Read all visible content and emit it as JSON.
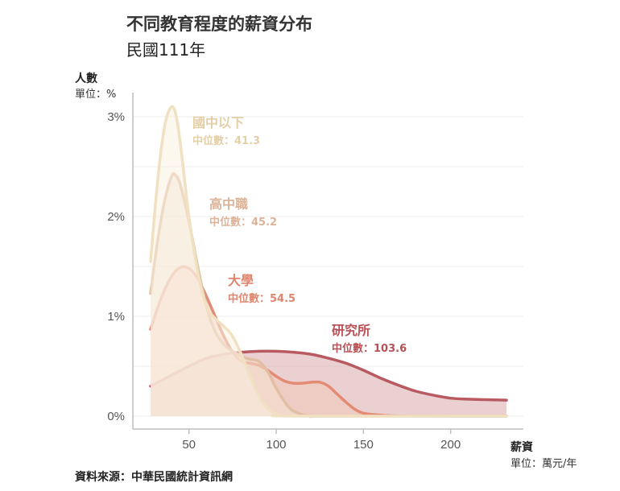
{
  "header": {
    "title": "不同教育程度的薪資分布",
    "subtitle": "民國111年"
  },
  "axes": {
    "y_title": "人數",
    "y_unit": "單位：%",
    "x_title": "薪資",
    "x_unit": "單位：萬元/年"
  },
  "footer": {
    "source": "資料來源：中華民國統計資訊網"
  },
  "chart_data": {
    "type": "area",
    "x_range": [
      28,
      232
    ],
    "ylim": [
      0,
      3.3
    ],
    "x_ticks": [
      50,
      100,
      150,
      200
    ],
    "y_ticks": [
      0,
      1,
      2,
      3
    ],
    "y_tick_labels": [
      "0%",
      "1%",
      "2%",
      "3%"
    ],
    "grid": true,
    "series": [
      {
        "name": "研究所",
        "median_label": "中位數：103.6",
        "color": "#b85a5f",
        "fill": "#dba9ac",
        "points": [
          [
            28,
            0.3
          ],
          [
            40,
            0.41
          ],
          [
            50,
            0.5
          ],
          [
            60,
            0.58
          ],
          [
            70,
            0.62
          ],
          [
            80,
            0.64
          ],
          [
            90,
            0.65
          ],
          [
            100,
            0.65
          ],
          [
            110,
            0.64
          ],
          [
            120,
            0.62
          ],
          [
            130,
            0.58
          ],
          [
            140,
            0.53
          ],
          [
            150,
            0.46
          ],
          [
            160,
            0.38
          ],
          [
            170,
            0.31
          ],
          [
            180,
            0.25
          ],
          [
            190,
            0.21
          ],
          [
            200,
            0.18
          ],
          [
            210,
            0.17
          ],
          [
            220,
            0.165
          ],
          [
            232,
            0.16
          ]
        ]
      },
      {
        "name": "大學",
        "median_label": "中位數：54.5",
        "color": "#e38b75",
        "fill": "#f3c9b8",
        "points": [
          [
            28,
            0.87
          ],
          [
            34,
            1.18
          ],
          [
            40,
            1.4
          ],
          [
            45,
            1.49
          ],
          [
            50,
            1.48
          ],
          [
            55,
            1.38
          ],
          [
            60,
            1.2
          ],
          [
            65,
            1.0
          ],
          [
            70,
            0.8
          ],
          [
            75,
            0.64
          ],
          [
            80,
            0.55
          ],
          [
            85,
            0.53
          ],
          [
            90,
            0.51
          ],
          [
            95,
            0.46
          ],
          [
            100,
            0.4
          ],
          [
            105,
            0.35
          ],
          [
            110,
            0.33
          ],
          [
            115,
            0.33
          ],
          [
            120,
            0.34
          ],
          [
            125,
            0.34
          ],
          [
            130,
            0.3
          ],
          [
            135,
            0.22
          ],
          [
            140,
            0.14
          ],
          [
            145,
            0.07
          ],
          [
            150,
            0.03
          ],
          [
            160,
            0.01
          ],
          [
            175,
            0.0
          ],
          [
            232,
            0.0
          ]
        ]
      },
      {
        "name": "高中職",
        "median_label": "中位數：45.2",
        "color": "#e2bfa3",
        "fill": "#f4e1d2",
        "points": [
          [
            28,
            1.23
          ],
          [
            32,
            1.75
          ],
          [
            36,
            2.15
          ],
          [
            40,
            2.4
          ],
          [
            42,
            2.42
          ],
          [
            45,
            2.32
          ],
          [
            50,
            1.95
          ],
          [
            55,
            1.5
          ],
          [
            60,
            1.1
          ],
          [
            65,
            0.85
          ],
          [
            70,
            0.72
          ],
          [
            75,
            0.65
          ],
          [
            80,
            0.6
          ],
          [
            85,
            0.57
          ],
          [
            90,
            0.55
          ],
          [
            95,
            0.45
          ],
          [
            100,
            0.28
          ],
          [
            105,
            0.14
          ],
          [
            110,
            0.05
          ],
          [
            120,
            0.0
          ],
          [
            130,
            0.0
          ],
          [
            232,
            0.0
          ]
        ]
      },
      {
        "name": "國中以下",
        "median_label": "中位數：41.3",
        "color": "#f1e1c3",
        "fill": "#faf1e1",
        "points": [
          [
            28,
            1.55
          ],
          [
            32,
            2.35
          ],
          [
            36,
            2.9
          ],
          [
            40,
            3.1
          ],
          [
            43,
            2.98
          ],
          [
            46,
            2.6
          ],
          [
            50,
            2.0
          ],
          [
            55,
            1.45
          ],
          [
            60,
            1.1
          ],
          [
            65,
            0.98
          ],
          [
            70,
            0.9
          ],
          [
            75,
            0.8
          ],
          [
            80,
            0.62
          ],
          [
            85,
            0.4
          ],
          [
            90,
            0.2
          ],
          [
            95,
            0.08
          ],
          [
            100,
            0.02
          ],
          [
            110,
            0.0
          ],
          [
            232,
            0.0
          ]
        ]
      }
    ]
  }
}
